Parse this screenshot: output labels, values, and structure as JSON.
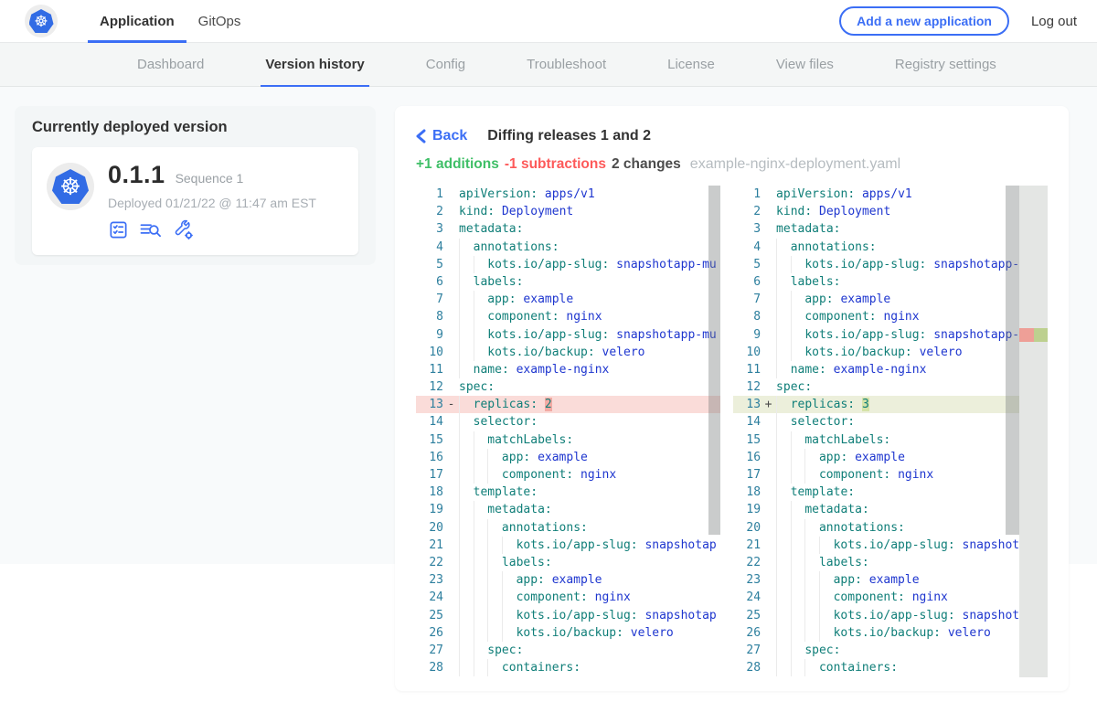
{
  "header": {
    "tabs": [
      {
        "label": "Application",
        "active": true
      },
      {
        "label": "GitOps",
        "active": false
      }
    ],
    "add_app_label": "Add a new application",
    "logout_label": "Log out",
    "logo": "kubernetes-logo"
  },
  "subnav": {
    "tabs": [
      "Dashboard",
      "Version history",
      "Config",
      "Troubleshoot",
      "License",
      "View files",
      "Registry settings"
    ],
    "active": "Version history"
  },
  "deployed_card": {
    "title": "Currently deployed version",
    "version": "0.1.1",
    "sequence": "Sequence 1",
    "deployed": "Deployed 01/21/22 @ 11:47 am EST",
    "action_icons": [
      "checklist-icon",
      "file-search-icon",
      "wrench-gear-icon"
    ]
  },
  "diff": {
    "back_label": "Back",
    "title": "Diffing releases 1 and 2",
    "additions": "+1 additions",
    "subtractions": "-1 subtractions",
    "changes": "2 changes",
    "filename": "example-nginx-deployment.yaml",
    "lines": [
      {
        "n": 1,
        "indent": 0,
        "key": "apiVersion:",
        "value": "apps/v1"
      },
      {
        "n": 2,
        "indent": 0,
        "key": "kind:",
        "value": "Deployment"
      },
      {
        "n": 3,
        "indent": 0,
        "key": "metadata:"
      },
      {
        "n": 4,
        "indent": 2,
        "key": "annotations:"
      },
      {
        "n": 5,
        "indent": 4,
        "key": "kots.io/app-slug:",
        "value": "snapshotapp-mu"
      },
      {
        "n": 6,
        "indent": 2,
        "key": "labels:"
      },
      {
        "n": 7,
        "indent": 4,
        "key": "app:",
        "value": "example"
      },
      {
        "n": 8,
        "indent": 4,
        "key": "component:",
        "value": "nginx"
      },
      {
        "n": 9,
        "indent": 4,
        "key": "kots.io/app-slug:",
        "value": "snapshotapp-mu"
      },
      {
        "n": 10,
        "indent": 4,
        "key": "kots.io/backup:",
        "value": "velero"
      },
      {
        "n": 11,
        "indent": 2,
        "key": "name:",
        "value": "example-nginx"
      },
      {
        "n": 12,
        "indent": 0,
        "key": "spec:"
      },
      {
        "n": 13,
        "indent": 2,
        "key": "replicas:",
        "diff": true,
        "left_value": "2",
        "right_value": "3"
      },
      {
        "n": 14,
        "indent": 2,
        "key": "selector:"
      },
      {
        "n": 15,
        "indent": 4,
        "key": "matchLabels:"
      },
      {
        "n": 16,
        "indent": 6,
        "key": "app:",
        "value": "example"
      },
      {
        "n": 17,
        "indent": 6,
        "key": "component:",
        "value": "nginx"
      },
      {
        "n": 18,
        "indent": 2,
        "key": "template:"
      },
      {
        "n": 19,
        "indent": 4,
        "key": "metadata:"
      },
      {
        "n": 20,
        "indent": 6,
        "key": "annotations:"
      },
      {
        "n": 21,
        "indent": 8,
        "key": "kots.io/app-slug:",
        "value": "snapshotap"
      },
      {
        "n": 22,
        "indent": 6,
        "key": "labels:"
      },
      {
        "n": 23,
        "indent": 8,
        "key": "app:",
        "value": "example"
      },
      {
        "n": 24,
        "indent": 8,
        "key": "component:",
        "value": "nginx"
      },
      {
        "n": 25,
        "indent": 8,
        "key": "kots.io/app-slug:",
        "value": "snapshotap"
      },
      {
        "n": 26,
        "indent": 8,
        "key": "kots.io/backup:",
        "value": "velero"
      },
      {
        "n": 27,
        "indent": 4,
        "key": "spec:"
      },
      {
        "n": 28,
        "indent": 6,
        "key": "containers:"
      }
    ]
  },
  "colors": {
    "accent_blue": "#3b6ef5",
    "kubernetes_blue": "#326ce5",
    "additions_green": "#3fbf67",
    "subtractions_red": "#fd5a5a",
    "removed_line_bg": "#fadcd9",
    "removed_char_bg": "#f3aba4",
    "added_line_bg": "#ecefdb",
    "added_char_bg": "#d6e3a8",
    "yaml_key": "#0f7e78",
    "yaml_value": "#1e36cf",
    "line_number": "#2d7f9e"
  }
}
